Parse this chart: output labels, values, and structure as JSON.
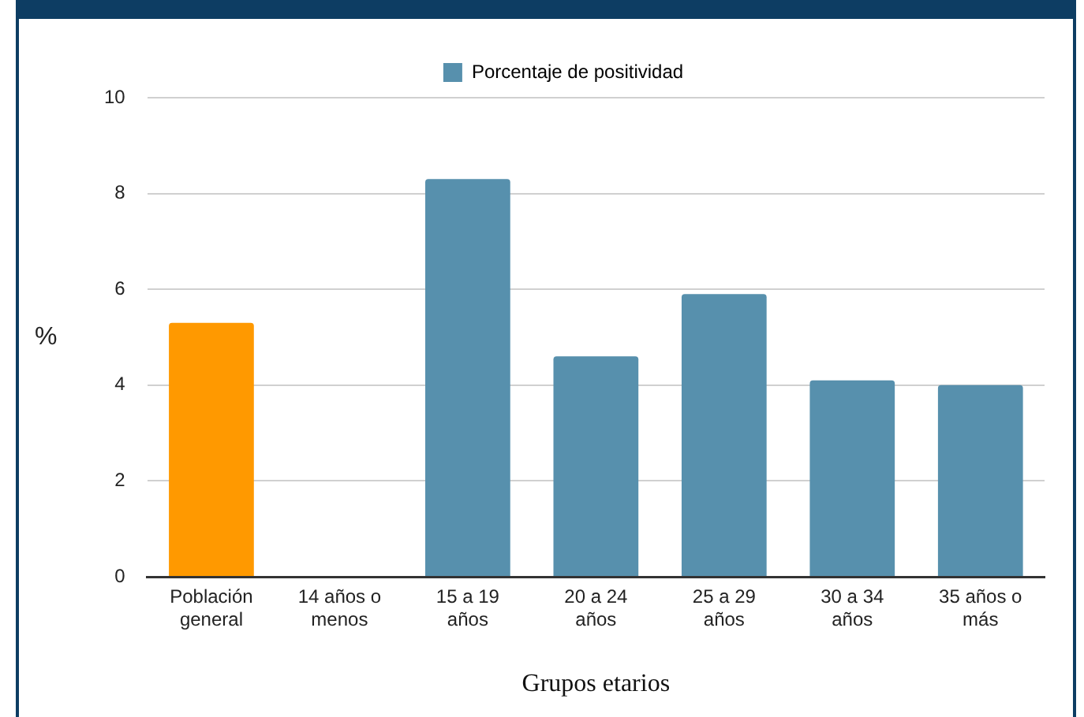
{
  "chart_data": {
    "type": "bar",
    "categories": [
      "Población general",
      "14 años o menos",
      "15 a 19 años",
      "20 a 24 años",
      "25 a 29 años",
      "30 a 34 años",
      "35 años o más"
    ],
    "series": [
      {
        "name": "Porcentaje de positividad",
        "color": "#5790ad",
        "colors": [
          "#ff9900",
          "#5790ad",
          "#5790ad",
          "#5790ad",
          "#5790ad",
          "#5790ad",
          "#5790ad"
        ],
        "values": [
          5.3,
          0,
          8.3,
          4.6,
          5.9,
          4.1,
          4.0
        ]
      }
    ],
    "ylim": [
      0,
      10
    ],
    "yticks": [
      0,
      2,
      4,
      6,
      8,
      10
    ],
    "grid": "y",
    "legend": "top",
    "xlabel": "Grupos etarios",
    "ylabel": "%"
  }
}
